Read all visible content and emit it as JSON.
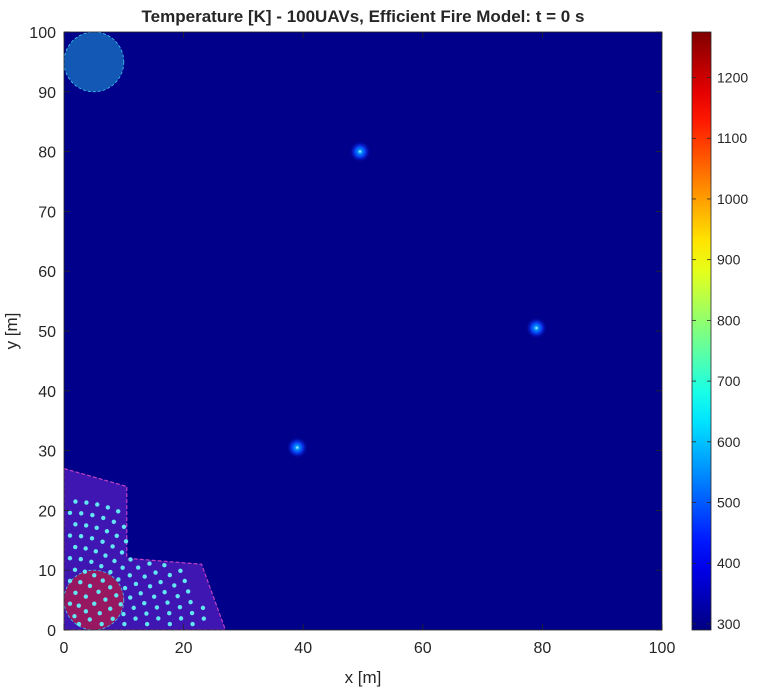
{
  "chart_data": {
    "type": "heatmap",
    "title": "Temperature [K] - 100UAVs, Efficient Fire Model: t = 0 s",
    "xlabel": "x [m]",
    "ylabel": "y [m]",
    "xlim": [
      0,
      100
    ],
    "ylim": [
      0,
      100
    ],
    "x_ticks": [
      0,
      20,
      40,
      60,
      80,
      100
    ],
    "y_ticks": [
      0,
      10,
      20,
      30,
      40,
      50,
      60,
      70,
      80,
      90,
      100
    ],
    "colorbar": {
      "colormap": "jet",
      "range": [
        290,
        1275
      ],
      "ticks": [
        300,
        400,
        500,
        600,
        700,
        800,
        900,
        1000,
        1100,
        1200
      ]
    },
    "background_temperature": 300,
    "hot_spots": [
      {
        "x": 49.5,
        "y": 80,
        "temperature": 560
      },
      {
        "x": 79,
        "y": 50.5,
        "temperature": 560
      },
      {
        "x": 39,
        "y": 30.5,
        "temperature": 560
      }
    ],
    "circles": [
      {
        "label": "region-top-left",
        "x": 5,
        "y": 95,
        "r": 5,
        "color": "#1560b8"
      },
      {
        "label": "region-bottom-left",
        "x": 5,
        "y": 5,
        "r": 5,
        "color": "#a0185a"
      }
    ],
    "uav_region": {
      "outline_color": "#c040c0",
      "fill_color": "#4a1ab8",
      "polygon": [
        [
          0,
          27
        ],
        [
          10.5,
          24
        ],
        [
          10.5,
          12
        ],
        [
          23,
          11
        ],
        [
          27,
          0
        ],
        [
          0,
          0
        ]
      ]
    },
    "uav_count": 100,
    "uav_marker_color": "#62e6f2",
    "grid": false
  }
}
